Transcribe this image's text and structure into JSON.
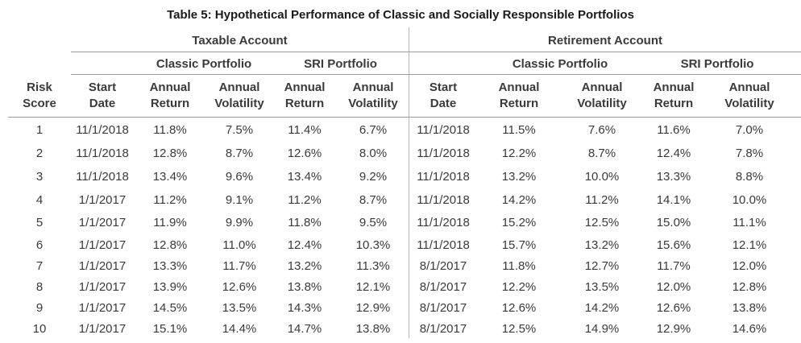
{
  "title": "Table 5: Hypothetical Performance of Classic and Socially Responsible Portfolios",
  "taxable_account": "Taxable Account",
  "retirement_account": "Retirement Account",
  "classic_portfolio": "Classic Portfolio",
  "sri_portfolio": "SRI Portfolio",
  "columns": [
    {
      "line1": "Risk",
      "line2": "Score"
    },
    {
      "line1": "Start",
      "line2": "Date"
    },
    {
      "line1": "Annual",
      "line2": "Return"
    },
    {
      "line1": "Annual",
      "line2": "Volatility"
    },
    {
      "line1": "Annual",
      "line2": "Return"
    },
    {
      "line1": "Annual",
      "line2": "Volatility"
    },
    {
      "line1": "Start",
      "line2": "Date"
    },
    {
      "line1": "Annual",
      "line2": "Return"
    },
    {
      "line1": "Annual",
      "line2": "Volatility"
    },
    {
      "line1": "Annual",
      "line2": "Return"
    },
    {
      "line1": "Annual",
      "line2": "Volatility"
    }
  ],
  "rows": [
    [
      "1",
      "11/1/2018",
      "11.8%",
      "7.5%",
      "11.4%",
      "6.7%",
      "11/1/2018",
      "11.5%",
      "7.6%",
      "11.6%",
      "7.0%"
    ],
    [
      "2",
      "11/1/2018",
      "12.8%",
      "8.7%",
      "12.6%",
      "8.0%",
      "11/1/2018",
      "12.2%",
      "8.7%",
      "12.4%",
      "7.8%"
    ],
    [
      "3",
      "11/1/2018",
      "13.4%",
      "9.6%",
      "13.4%",
      "9.2%",
      "11/1/2018",
      "13.2%",
      "10.0%",
      "13.3%",
      "8.8%"
    ],
    [
      "4",
      "1/1/2017",
      "11.2%",
      "9.1%",
      "11.2%",
      "8.7%",
      "11/1/2018",
      "14.2%",
      "11.2%",
      "14.1%",
      "10.0%"
    ],
    [
      "5",
      "1/1/2017",
      "11.9%",
      "9.9%",
      "11.8%",
      "9.5%",
      "11/1/2018",
      "15.2%",
      "12.5%",
      "15.0%",
      "11.1%"
    ],
    [
      "6",
      "1/1/2017",
      "12.8%",
      "11.0%",
      "12.4%",
      "10.3%",
      "11/1/2018",
      "15.7%",
      "13.2%",
      "15.6%",
      "12.1%"
    ],
    [
      "7",
      "1/1/2017",
      "13.3%",
      "11.7%",
      "13.2%",
      "11.3%",
      "8/1/2017",
      "11.8%",
      "12.7%",
      "11.7%",
      "12.0%"
    ],
    [
      "8",
      "1/1/2017",
      "13.9%",
      "12.6%",
      "13.8%",
      "12.1%",
      "8/1/2017",
      "12.2%",
      "13.5%",
      "12.0%",
      "12.8%"
    ],
    [
      "9",
      "1/1/2017",
      "14.5%",
      "13.5%",
      "14.3%",
      "12.9%",
      "8/1/2017",
      "12.6%",
      "14.2%",
      "12.6%",
      "13.8%"
    ],
    [
      "10",
      "1/1/2017",
      "15.1%",
      "14.4%",
      "14.7%",
      "13.8%",
      "8/1/2017",
      "12.5%",
      "14.9%",
      "12.9%",
      "14.6%"
    ]
  ]
}
